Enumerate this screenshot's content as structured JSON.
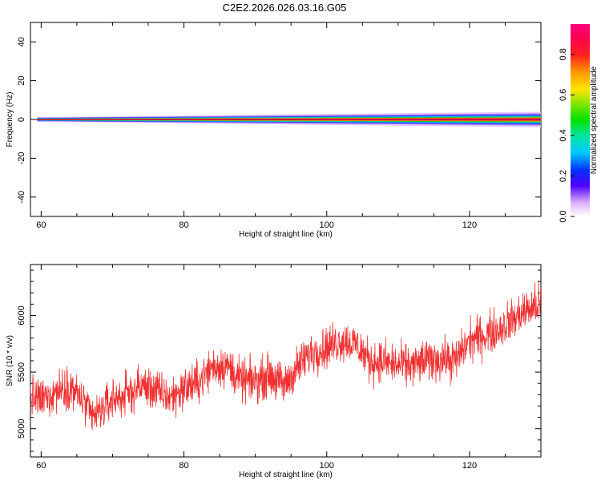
{
  "title": "C2E2.2026.026.03.16.G05",
  "colors": {
    "snr_line": "#f03030",
    "frame": "#000000"
  },
  "chart_data": [
    {
      "type": "heatmap",
      "xlabel": "Height of straight line (km)",
      "ylabel": "Frequency (Hz)",
      "xlim": [
        58.5,
        130
      ],
      "ylim": [
        -50,
        50
      ],
      "xticks": [
        60,
        80,
        100,
        120
      ],
      "yticks": [
        40,
        20,
        0,
        -20,
        -40
      ],
      "xtick_labels": [
        "60",
        "80",
        "100",
        "120"
      ],
      "ytick_labels": [
        "40",
        "20",
        "0",
        "-20",
        "-40"
      ],
      "colorbar": {
        "label": "Normalized spectral amplitude",
        "range": [
          0,
          0.95
        ],
        "ticks": [
          0.0,
          0.2,
          0.4,
          0.6,
          0.8
        ],
        "tick_labels": [
          "0.0",
          "0.2",
          "0.4",
          "0.6",
          "0.8"
        ],
        "colormap": "rainbow (white-violet-blue-cyan-green-yellow-orange-red-magenta)"
      },
      "band": {
        "center_hz": 0,
        "x_start": 59.2,
        "x_end": 130,
        "halfwidth_start_hz": 1.2,
        "halfwidth_end_hz": 4.0
      },
      "grid": false
    },
    {
      "type": "line",
      "xlabel": "Height of straight line (km)",
      "ylabel": "SNR (10 * v/v)",
      "xlim": [
        58.5,
        130
      ],
      "ylim": [
        4750,
        6450
      ],
      "xticks": [
        60,
        80,
        100,
        120
      ],
      "yticks": [
        5000,
        5500,
        6000
      ],
      "xtick_labels": [
        "60",
        "80",
        "100",
        "120"
      ],
      "ytick_labels": [
        "5000",
        "5500",
        "6000"
      ],
      "series": [
        {
          "x": [
            58.5,
            60,
            62,
            64,
            66,
            67,
            68,
            70,
            72,
            74,
            76,
            78,
            80,
            82,
            84,
            86,
            88,
            90,
            92,
            94,
            96,
            98,
            100,
            102,
            104,
            105,
            106,
            108,
            110,
            112,
            114,
            116,
            118,
            120,
            122,
            124,
            126,
            128,
            130
          ],
          "y": [
            5280,
            5250,
            5330,
            5380,
            5230,
            5100,
            5130,
            5260,
            5300,
            5380,
            5340,
            5270,
            5360,
            5410,
            5550,
            5560,
            5420,
            5420,
            5480,
            5380,
            5550,
            5680,
            5720,
            5780,
            5750,
            5680,
            5600,
            5590,
            5560,
            5560,
            5600,
            5620,
            5600,
            5780,
            5820,
            5880,
            5960,
            6050,
            6100
          ],
          "noise_amplitude": 140
        }
      ],
      "grid": false
    }
  ]
}
